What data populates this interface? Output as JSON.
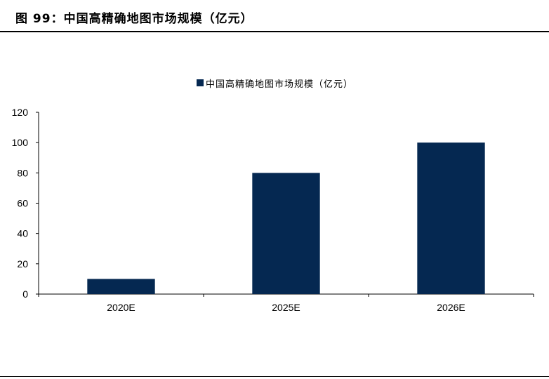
{
  "figure": {
    "title": "图 99：中国高精确地图市场规模（亿元）"
  },
  "colors": {
    "bar": "#052851",
    "axis": "#000000"
  },
  "chart_data": {
    "type": "bar",
    "categories": [
      "2020E",
      "2025E",
      "2026E"
    ],
    "series": [
      {
        "name": "中国高精确地图市场规模（亿元）",
        "values": [
          10,
          80,
          100
        ]
      }
    ],
    "xlabel": "",
    "ylabel": "",
    "ylim": [
      0,
      120
    ],
    "yticks": [
      0,
      20,
      40,
      60,
      80,
      100,
      120
    ],
    "grid": false,
    "legend_position": "top-center"
  }
}
